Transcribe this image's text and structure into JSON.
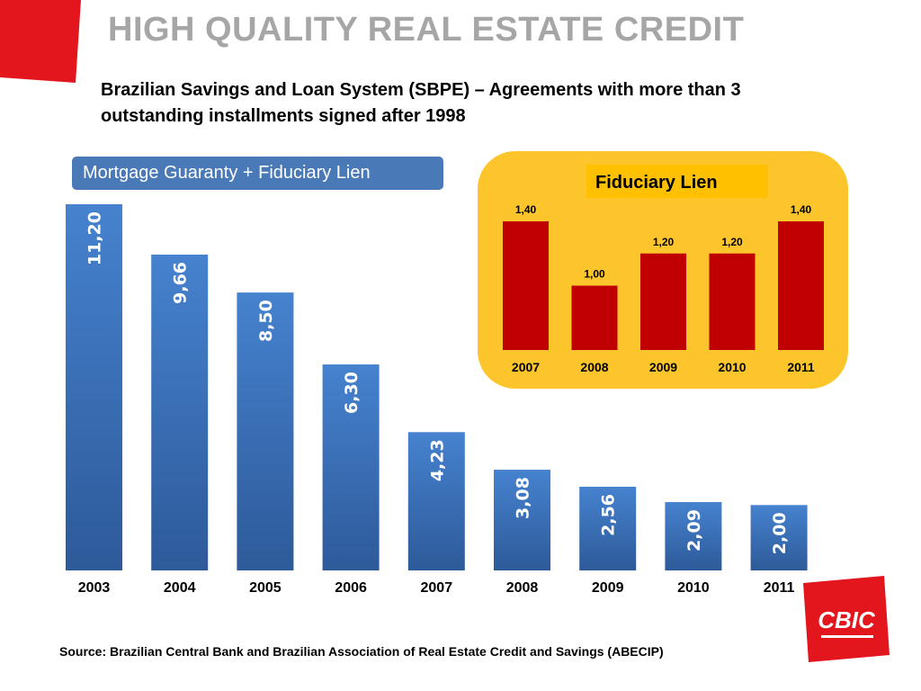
{
  "slide": {
    "title": "HIGH QUALITY REAL ESTATE CREDIT",
    "subtitle_line1": "Brazilian Savings and Loan System (SBPE) – Agreements with more than 3",
    "subtitle_line2": "outstanding installments signed after 1998",
    "source": "Source: Brazilian Central Bank and Brazilian Association of Real Estate Credit and Savings (ABECIP)",
    "logo_text": "CBIC"
  },
  "colors": {
    "accent_red": "#e2161c",
    "main_bar": "#3d74be",
    "inset_bar": "#c00000",
    "inset_panel": "#fcc52b",
    "inset_legend_fill": "#ffc000"
  },
  "chart_data": [
    {
      "type": "bar",
      "legend": "Mortgage Guaranty + Fiduciary Lien",
      "categories": [
        "2003",
        "2004",
        "2005",
        "2006",
        "2007",
        "2008",
        "2009",
        "2010",
        "2011"
      ],
      "values": [
        11.2,
        9.66,
        8.5,
        6.3,
        4.23,
        3.08,
        2.56,
        2.09,
        2.0
      ],
      "value_labels": [
        "11,20",
        "9,66",
        "8,50",
        "6,30",
        "4,23",
        "3,08",
        "2,56",
        "2,09",
        "2,00"
      ],
      "label_orientation": "vertical inside bar",
      "ylim": [
        0,
        11.2
      ]
    },
    {
      "type": "bar",
      "legend": "Fiduciary Lien",
      "categories": [
        "2007",
        "2008",
        "2009",
        "2010",
        "2011"
      ],
      "values": [
        1.4,
        1.0,
        1.2,
        1.2,
        1.4
      ],
      "value_labels": [
        "1,40",
        "1,00",
        "1,20",
        "1,20",
        "1,40"
      ],
      "label_orientation": "above bar",
      "ylim": [
        0.6,
        1.4
      ]
    }
  ]
}
